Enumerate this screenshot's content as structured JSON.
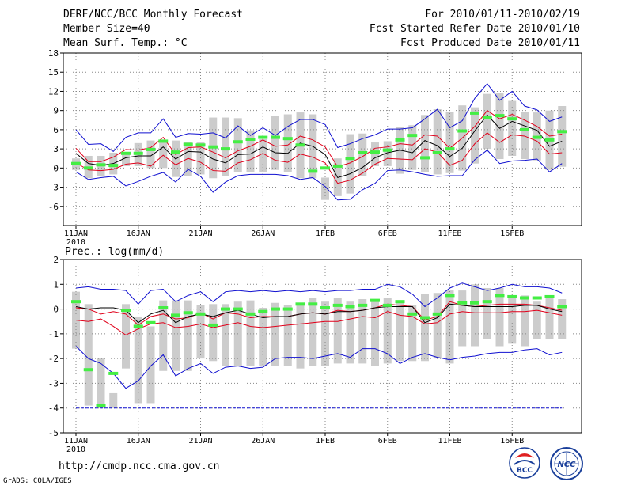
{
  "header": {
    "title": "DERF/NCC/BCC Monthly Forecast",
    "member_size": "Member Size=40",
    "variable": "Mean Surf. Temp.: °C",
    "period": "For 2010/01/11-2010/02/19",
    "started": "Fcst Started Refer Date 2010/01/10",
    "produced": "Fcst Produced Date 2010/01/11"
  },
  "footer": {
    "url": "http://cmdp.ncc.cma.gov.cn",
    "grads": "GrADS: COLA/IGES",
    "logo_bcc": "BCC",
    "logo_ncc": "NCC"
  },
  "colors": {
    "ens_mean": "#000000",
    "spread": "#e0001a",
    "envelope": "#1010d0",
    "box": "#cccccc",
    "obs": "#44ee44",
    "grid": "#888888"
  },
  "chart_data": [
    {
      "type": "box",
      "title": "Mean Surf. Temp.: °C",
      "ylim": [
        -9,
        18
      ],
      "yticks": [
        18,
        15,
        12,
        9,
        6,
        3,
        0,
        -3,
        -6
      ],
      "xticks": [
        "11JAN",
        "16JAN",
        "21JAN",
        "26JAN",
        "1FEB",
        "6FEB",
        "11FEB",
        "16FEB"
      ],
      "year_label": "2010",
      "days": 40,
      "series": [
        {
          "name": "max",
          "values": [
            6,
            3.7,
            3.8,
            2.6,
            4.8,
            5.5,
            5.5,
            7.7,
            4.8,
            5.4,
            5.3,
            5.5,
            4.7,
            6.6,
            5.1,
            6.3,
            5.1,
            6.5,
            7.6,
            7.6,
            6.8,
            3.2,
            3.8,
            4.6,
            5.2,
            6.1,
            6.1,
            6.3,
            7.7,
            9.2,
            6.3,
            7.4,
            10.9,
            13.2,
            10.6,
            12.0,
            9.7,
            9.1,
            7.3,
            8.0
          ]
        },
        {
          "name": "upper",
          "values": [
            3.1,
            1,
            1,
            1.7,
            2.9,
            2.8,
            3.2,
            4.8,
            2.1,
            3.2,
            3.3,
            2.5,
            1.6,
            2.7,
            3.4,
            4.4,
            3.4,
            3.6,
            5,
            4.4,
            3.3,
            0.2,
            0.8,
            1.8,
            3.1,
            3.3,
            3.8,
            3.6,
            5.2,
            5,
            3.1,
            4.7,
            6.5,
            9,
            7.7,
            8.4,
            7.5,
            6.5,
            5,
            5.3
          ]
        },
        {
          "name": "mean",
          "values": [
            2.3,
            0.7,
            0.4,
            0.7,
            1.6,
            1.9,
            1.9,
            3.3,
            1.4,
            2.6,
            2.5,
            1.4,
            0.8,
            2.1,
            2.2,
            3.3,
            2.4,
            2.3,
            3.9,
            3.4,
            2.1,
            -1.5,
            -0.9,
            0.1,
            1.6,
            2.4,
            2.8,
            2.4,
            4.3,
            3.5,
            1.8,
            3.1,
            5.8,
            8.3,
            6.2,
            7.3,
            6.6,
            5.9,
            3.4,
            4.2
          ]
        },
        {
          "name": "lower",
          "values": [
            0.8,
            -0.3,
            -0.4,
            -0.2,
            0.6,
            0.8,
            0.3,
            2,
            0.5,
            1.5,
            0.9,
            -0.4,
            -0.5,
            0.8,
            1.3,
            2.3,
            1.2,
            0.9,
            2.2,
            1.7,
            0.8,
            -2.4,
            -1.9,
            -0.8,
            0.6,
            1.5,
            1.4,
            1.3,
            3,
            2.5,
            0.4,
            1.2,
            3.8,
            5.5,
            4,
            5.2,
            5,
            4.2,
            2.2,
            2.4
          ]
        },
        {
          "name": "min",
          "values": [
            -0.6,
            -1.8,
            -1.5,
            -1.3,
            -2.8,
            -2.1,
            -1.3,
            -0.7,
            -2.2,
            -0.2,
            -1.3,
            -3.8,
            -2.2,
            -1.2,
            -1.0,
            -1.0,
            -1.0,
            -1.2,
            -1.8,
            -1.5,
            -2.9,
            -5,
            -4.9,
            -3.4,
            -2.4,
            -0.4,
            -0.3,
            -0.6,
            -1,
            -1.3,
            -1.2,
            -1.2,
            1.3,
            2.8,
            0.7,
            1.1,
            1.2,
            1.4,
            -0.6,
            0.7
          ]
        },
        {
          "name": "obs",
          "values": [
            0.7,
            0.0,
            0.5,
            0.4,
            2.3,
            2.3,
            2.9,
            4.2,
            2.5,
            3.7,
            3.6,
            3.3,
            3.0,
            4.1,
            4.5,
            4.8,
            4.8,
            4.6,
            3.6,
            -0.5,
            0.0,
            0.3,
            1.5,
            2.4,
            2.5,
            2.8,
            4.4,
            5.1,
            1.6,
            2.4,
            3.0,
            5.8,
            8.6,
            7.9,
            8.2,
            7.7,
            6.0,
            4.8,
            4.4,
            5.7
          ]
        },
        {
          "name": "box_hi",
          "values": [
            1.5,
            1.9,
            1.9,
            2.4,
            2.4,
            3.9,
            4.3,
            4.3,
            4.3,
            4.1,
            4.0,
            7.9,
            7.9,
            7.8,
            5.9,
            4.5,
            8.2,
            8.4,
            8.7,
            8.4,
            -1.5,
            1.5,
            5.3,
            5.4,
            4.0,
            4.2,
            6.4,
            6.7,
            8.3,
            9.2,
            8.8,
            9.8,
            9.5,
            11.6,
            11.8,
            10.5,
            8.8,
            8.7,
            9.0,
            9.7
          ]
        },
        {
          "name": "box_lo",
          "values": [
            -0.3,
            -1.6,
            -1.2,
            -1.0,
            0.3,
            0.3,
            0.0,
            0.0,
            -1.4,
            -1.2,
            -1.0,
            -1.6,
            -1.2,
            -0.6,
            -0.7,
            -0.7,
            -0.3,
            -0.6,
            -1.6,
            -1.6,
            -5.0,
            -4.4,
            -4.0,
            -1.3,
            0.3,
            0.3,
            -0.9,
            -0.3,
            -0.7,
            -1.0,
            -0.8,
            -0.4,
            0.7,
            3.0,
            1.4,
            1.9,
            1.4,
            1.2,
            -0.3,
            0.2
          ]
        }
      ]
    },
    {
      "type": "box",
      "title": "Prec.: log(mm/d)",
      "ylim": [
        -5,
        2
      ],
      "yticks": [
        2,
        1,
        0,
        -1,
        -2,
        -3,
        -4,
        -5
      ],
      "xticks": [
        "11JAN",
        "16JAN",
        "21JAN",
        "26JAN",
        "1FEB",
        "6FEB",
        "11FEB",
        "16FEB"
      ],
      "year_label": "2010",
      "days": 40,
      "baseline": -4,
      "series": [
        {
          "name": "max",
          "values": [
            0.85,
            0.9,
            0.8,
            0.8,
            0.75,
            0.2,
            0.75,
            0.8,
            0.3,
            0.55,
            0.7,
            0.3,
            0.7,
            0.75,
            0.7,
            0.75,
            0.7,
            0.75,
            0.7,
            0.75,
            0.7,
            0.75,
            0.75,
            0.8,
            0.8,
            1,
            0.9,
            0.6,
            0.1,
            0.45,
            0.85,
            1.05,
            0.9,
            0.75,
            0.85,
            1,
            0.9,
            0.9,
            0.85,
            0.65
          ]
        },
        {
          "name": "upper",
          "values": [
            0.05,
            0,
            -0.2,
            -0.1,
            -0.2,
            -0.65,
            -0.3,
            -0.2,
            -0.4,
            -0.35,
            -0.15,
            -0.4,
            -0.15,
            -0.2,
            -0.35,
            -0.3,
            -0.3,
            -0.3,
            -0.2,
            -0.15,
            -0.2,
            -0.05,
            -0.1,
            -0.05,
            0.05,
            0.2,
            0.15,
            0.1,
            -0.45,
            -0.3,
            0.3,
            0.15,
            0.1,
            0.15,
            0.2,
            0.2,
            0.2,
            0.15,
            0.05,
            -0.05
          ]
        },
        {
          "name": "mean",
          "values": [
            0.1,
            0,
            0.05,
            0.05,
            -0.05,
            -0.55,
            -0.2,
            -0.05,
            -0.55,
            -0.3,
            -0.2,
            -0.3,
            -0.15,
            -0.05,
            -0.2,
            -0.35,
            -0.3,
            -0.3,
            -0.2,
            -0.15,
            -0.2,
            -0.1,
            -0.1,
            -0.05,
            0.05,
            0.1,
            0.1,
            0.1,
            -0.55,
            -0.35,
            0.2,
            0.15,
            0.1,
            0.1,
            0.1,
            0.1,
            0.15,
            0.15,
            0,
            -0.1
          ]
        },
        {
          "name": "lower",
          "values": [
            -0.45,
            -0.5,
            -0.4,
            -0.7,
            -1.05,
            -0.8,
            -0.6,
            -0.55,
            -0.75,
            -0.7,
            -0.6,
            -0.75,
            -0.65,
            -0.55,
            -0.7,
            -0.75,
            -0.7,
            -0.65,
            -0.6,
            -0.55,
            -0.5,
            -0.5,
            -0.4,
            -0.3,
            -0.35,
            -0.1,
            -0.25,
            -0.3,
            -0.6,
            -0.55,
            -0.2,
            -0.1,
            -0.15,
            -0.15,
            -0.15,
            -0.1,
            -0.1,
            -0.05,
            -0.15,
            -0.25
          ]
        },
        {
          "name": "min",
          "values": [
            -1.5,
            -2.0,
            -2.2,
            -2.6,
            -3.2,
            -2.9,
            -2.3,
            -1.85,
            -2.7,
            -2.4,
            -2.2,
            -2.6,
            -2.35,
            -2.3,
            -2.4,
            -2.35,
            -2.0,
            -1.95,
            -1.95,
            -2.0,
            -1.9,
            -1.8,
            -1.95,
            -1.6,
            -1.6,
            -1.8,
            -2.2,
            -1.95,
            -1.8,
            -1.95,
            -2.05,
            -1.95,
            -1.9,
            -1.8,
            -1.75,
            -1.75,
            -1.65,
            -1.6,
            -1.85,
            -1.75
          ]
        },
        {
          "name": "obs",
          "values": [
            0.3,
            -2.45,
            -3.9,
            -2.6,
            -0.05,
            -0.7,
            -0.55,
            0.05,
            -0.25,
            -0.15,
            -0.2,
            -0.65,
            0,
            0,
            -0.2,
            -0.1,
            0,
            0,
            0.2,
            0.2,
            0.05,
            0.15,
            0.1,
            0.15,
            0.35,
            0.15,
            0.3,
            -0.2,
            -0.35,
            -0.2,
            0.55,
            0.25,
            0.25,
            0.3,
            0.55,
            0.5,
            0.45,
            0.45,
            0.5,
            0.1
          ]
        },
        {
          "name": "box_hi",
          "values": [
            0.7,
            0.2,
            -2,
            -3.4,
            0.2,
            -0.3,
            -0.7,
            0.35,
            0.35,
            0.35,
            0.15,
            0.2,
            0.2,
            0.3,
            0.35,
            0.05,
            0.25,
            0.15,
            0.25,
            0.45,
            0.3,
            0.45,
            0.3,
            0.4,
            0.3,
            0.45,
            0.25,
            0.15,
            0.6,
            0.65,
            0.75,
            0.75,
            1.0,
            0.85,
            0.85,
            0.55,
            0.55,
            0.3,
            0.5,
            0.4
          ]
        },
        {
          "name": "box_lo",
          "values": [
            -1.6,
            -3.9,
            -4.0,
            -4.0,
            -2.4,
            -3.8,
            -3.8,
            -2.5,
            -2.5,
            -2.5,
            -2.0,
            -2.1,
            -2.3,
            -2.3,
            -2.3,
            -2.3,
            -2.3,
            -2.3,
            -2.4,
            -2.3,
            -2.3,
            -2.2,
            -2.2,
            -2.2,
            -2.3,
            -2.2,
            -2.1,
            -2.1,
            -2.1,
            -2.0,
            -2.2,
            -1.5,
            -1.5,
            -1.2,
            -1.5,
            -1.4,
            -1.5,
            -1.2,
            -1.2,
            -1.2
          ]
        }
      ]
    }
  ]
}
